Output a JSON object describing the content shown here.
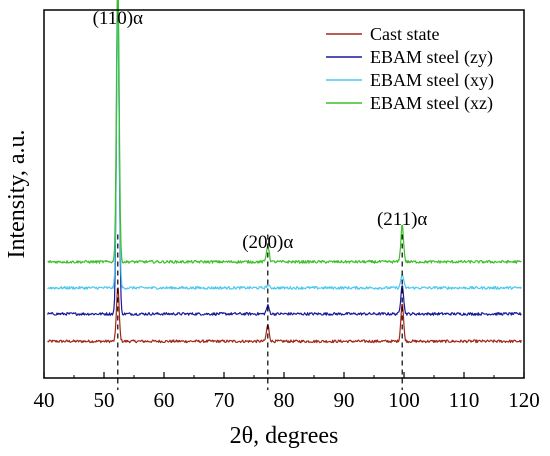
{
  "chart_data": {
    "type": "line",
    "xlabel": "2θ, degrees",
    "ylabel": "Intensity, a.u.",
    "xlim": [
      40,
      120
    ],
    "xticks": [
      40,
      50,
      60,
      70,
      80,
      90,
      100,
      110,
      120
    ],
    "yticks_shown": false,
    "grid": false,
    "legend_position": "top-right",
    "peak_labels": [
      {
        "text": "(110)α",
        "x": 52.3
      },
      {
        "text": "(200)α",
        "x": 77.3
      },
      {
        "text": "(211)α",
        "x": 99.7
      }
    ],
    "reference_lines_x": [
      52.3,
      77.3,
      99.7
    ],
    "series": [
      {
        "name": "Cast state",
        "color": "#a02818",
        "baseline": 10,
        "peaks": [
          [
            52.3,
            40
          ],
          [
            77.3,
            12
          ],
          [
            99.7,
            28
          ]
        ]
      },
      {
        "name": "EBAM steel (zy)",
        "color": "#1a1a9a",
        "baseline": 30,
        "peaks": [
          [
            52.3,
            235
          ],
          [
            77.3,
            6
          ],
          [
            99.7,
            22
          ]
        ]
      },
      {
        "name": "EBAM steel (xy)",
        "color": "#4cc8f0",
        "baseline": 49,
        "peaks": [
          [
            52.3,
            200
          ],
          [
            77.3,
            2
          ],
          [
            99.7,
            10
          ]
        ]
      },
      {
        "name": "EBAM steel (xz)",
        "color": "#3cc028",
        "baseline": 68,
        "peaks": [
          [
            52.3,
            215
          ],
          [
            77.3,
            12
          ],
          [
            99.7,
            27
          ]
        ]
      }
    ]
  }
}
